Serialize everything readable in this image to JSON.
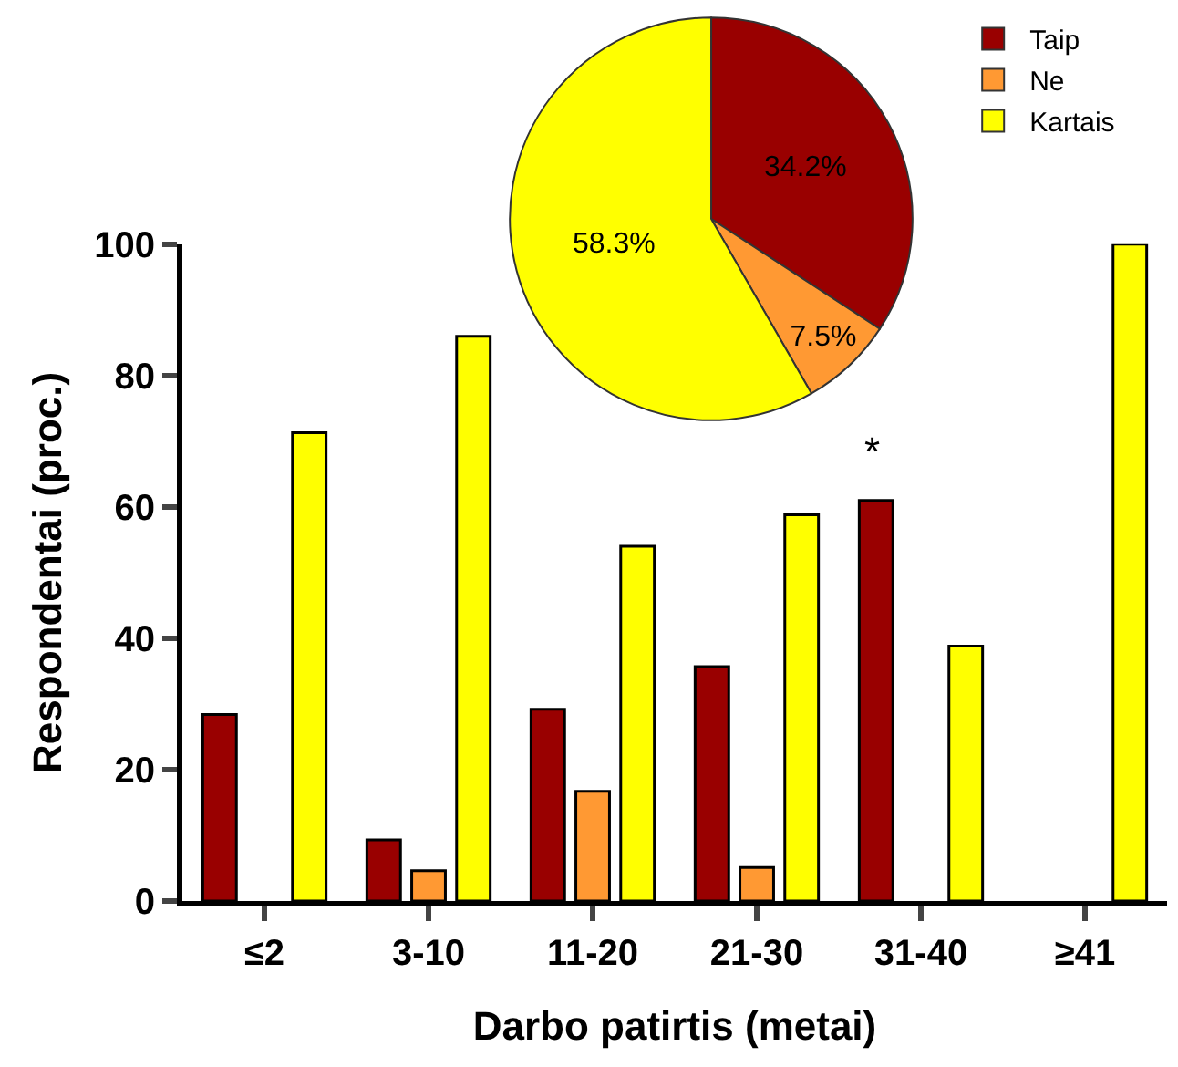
{
  "chart_data": [
    {
      "type": "bar",
      "xlabel": "Darbo patirtis (metai)",
      "ylabel": "Respondentai (proc.)",
      "categories": [
        "≤2",
        "3-10",
        "11-20",
        "21-30",
        "31-40",
        "≥41"
      ],
      "series": [
        {
          "color": "#990000",
          "values": [
            28.4,
            9.3,
            29.2,
            35.7,
            61.0,
            null
          ]
        },
        {
          "color": "#ff9933",
          "values": [
            null,
            4.6,
            16.7,
            5.1,
            null,
            null
          ]
        },
        {
          "color": "#ffff00",
          "values": [
            71.3,
            86.0,
            54.0,
            58.8,
            38.8,
            100
          ]
        }
      ],
      "ylim": [
        0,
        100
      ],
      "yticks": [
        0,
        20,
        40,
        60,
        80,
        100
      ],
      "grid": false,
      "annotations": [
        "*"
      ]
    },
    {
      "type": "pie",
      "categories": [
        "Taip",
        "Ne",
        "Kartais"
      ],
      "values": [
        34.2,
        7.5,
        58.3
      ],
      "colors": [
        "#990000",
        "#ff9933",
        "#ffff00"
      ],
      "legend": "top right",
      "value_labels": [
        "34.2%",
        "7.5%",
        "58.3%"
      ]
    }
  ]
}
